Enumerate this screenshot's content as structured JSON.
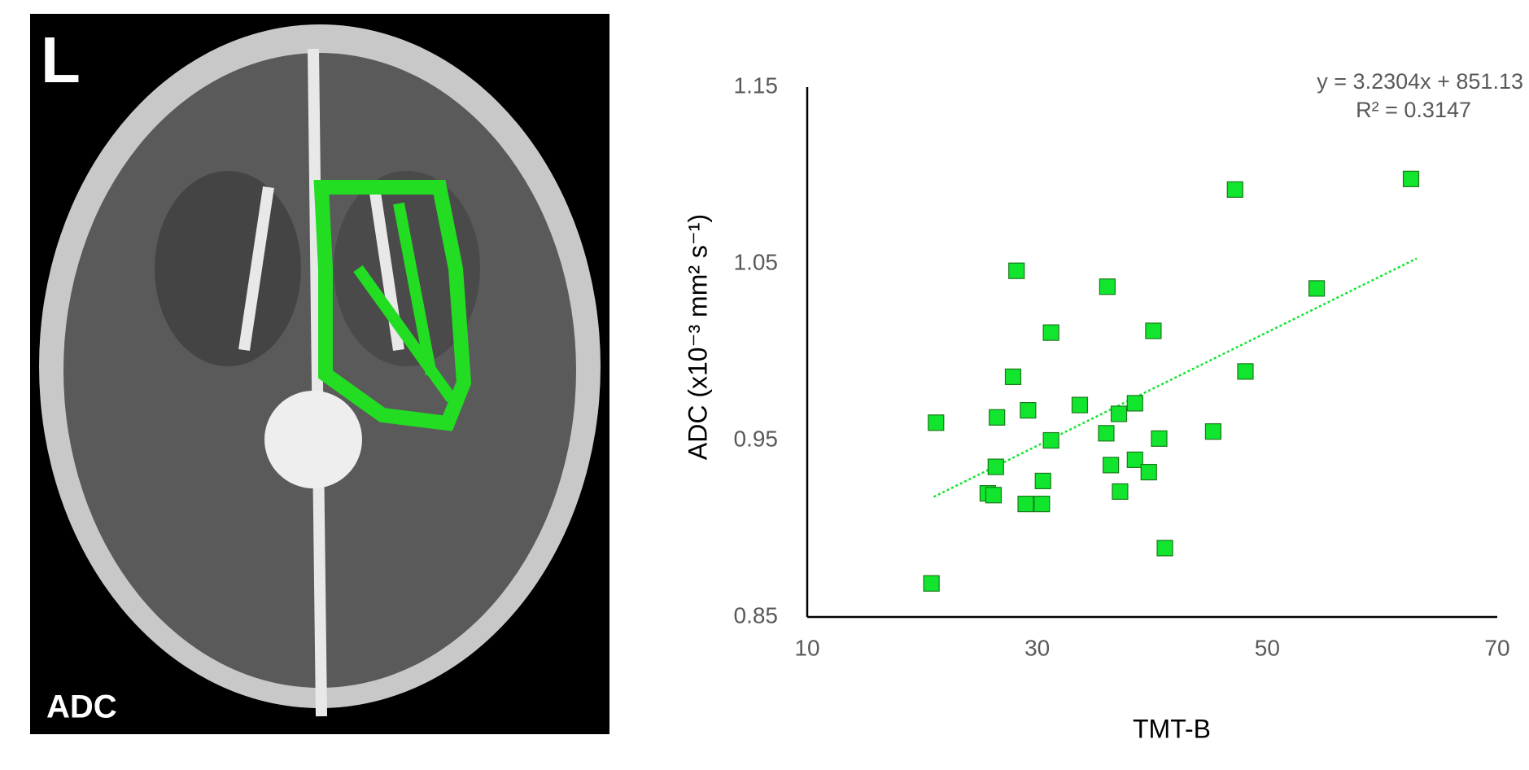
{
  "image_panel": {
    "side_label": "L",
    "map_label": "ADC"
  },
  "chart_data": {
    "type": "scatter",
    "x_label": "TMT-B",
    "y_label": "ADC (x10⁻³ mm² s⁻¹)",
    "annotations": [
      "y = 3.2304x + 851.13",
      "R² = 0.3147"
    ],
    "xlim": [
      10,
      70
    ],
    "xticks": [
      10,
      30,
      50,
      70
    ],
    "ylim": [
      0.85,
      1.15
    ],
    "yticks": [
      0.85,
      0.95,
      1.05,
      1.15
    ],
    "color": "#11e52e",
    "x": [
      21.2,
      20.8,
      25.7,
      26.2,
      26.4,
      26.5,
      28.2,
      27.9,
      29.2,
      29.0,
      30.4,
      30.5,
      31.2,
      31.2,
      33.7,
      36.0,
      36.1,
      36.4,
      37.1,
      37.2,
      38.5,
      38.5,
      39.7,
      40.1,
      40.6,
      41.1,
      45.3,
      47.2,
      48.1,
      54.3,
      62.5
    ],
    "values": [
      0.96,
      0.869,
      0.92,
      0.919,
      0.935,
      0.963,
      1.046,
      0.986,
      0.967,
      0.914,
      0.914,
      0.927,
      0.95,
      1.011,
      0.97,
      0.954,
      1.037,
      0.936,
      0.965,
      0.921,
      0.971,
      0.939,
      0.932,
      1.012,
      0.951,
      0.889,
      0.955,
      1.092,
      0.989,
      1.036,
      1.098
    ],
    "trendline": {
      "x": [
        21,
        63
      ],
      "values": [
        0.918,
        1.053
      ]
    }
  }
}
